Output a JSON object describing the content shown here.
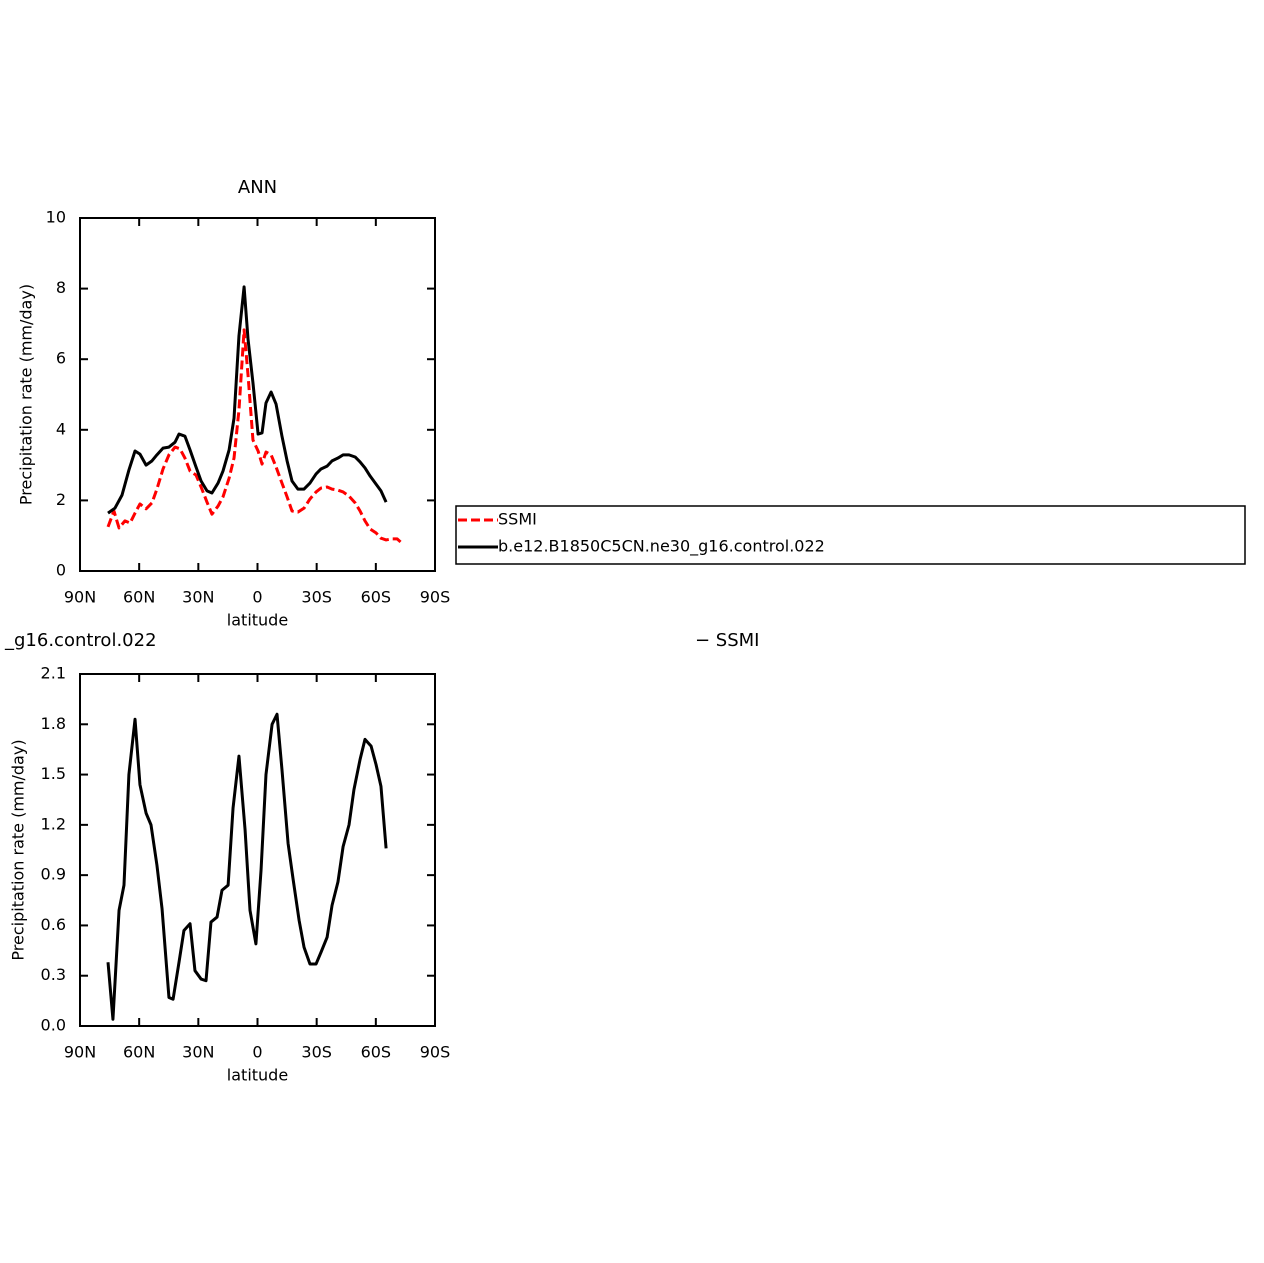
{
  "chart_data": [
    {
      "type": "line",
      "title": "ANN",
      "xlabel": "latitude",
      "ylabel": "Precipitation rate (mm/day)",
      "xlim": [
        90,
        -90
      ],
      "xticks": [
        {
          "value": 90,
          "label": "90N"
        },
        {
          "value": 60,
          "label": "60N"
        },
        {
          "value": 30,
          "label": "30N"
        },
        0,
        {
          "value": -30,
          "label": "30S"
        },
        {
          "value": -60,
          "label": "60S"
        },
        {
          "value": -90,
          "label": "90S"
        }
      ],
      "ylim": [
        0,
        10
      ],
      "yticks": [
        0,
        2,
        4,
        6,
        8,
        10
      ],
      "legend": "right",
      "series": [
        {
          "name": "SSMI",
          "color": "#ff0000",
          "dash": true,
          "x": [
            75.8,
            72.8,
            70.2,
            67.2,
            64.6,
            62.1,
            59.6,
            56.5,
            53.5,
            51.0,
            47.9,
            44.9,
            41.8,
            39.3,
            36.8,
            34.2,
            31.2,
            28.6,
            25.6,
            23.1,
            20.0,
            17.5,
            14.4,
            11.9,
            9.4,
            6.8,
            4.8,
            2.3,
            -0.3,
            -2.3,
            -4.3,
            -6.9,
            -9.4,
            -12.4,
            -15.0,
            -17.5,
            -20.5,
            -23.6,
            -26.6,
            -29.7,
            -32.2,
            -35.3,
            -37.8,
            -40.8,
            -43.4,
            -46.4,
            -49.5,
            -52.0,
            -54.5,
            -57.1,
            -60.1,
            -62.6,
            -65.2,
            -68.2,
            -70.8,
            -73.8
          ],
          "values": [
            1.25,
            1.7,
            1.22,
            1.42,
            1.36,
            1.64,
            1.9,
            1.76,
            1.93,
            2.32,
            2.89,
            3.29,
            3.51,
            3.46,
            3.2,
            2.83,
            2.72,
            2.38,
            1.95,
            1.61,
            1.84,
            2.1,
            2.63,
            3.2,
            4.56,
            6.83,
            5.55,
            3.71,
            3.4,
            3.03,
            3.37,
            3.29,
            2.95,
            2.49,
            2.1,
            1.7,
            1.67,
            1.78,
            2.04,
            2.24,
            2.35,
            2.38,
            2.32,
            2.29,
            2.24,
            2.12,
            1.93,
            1.7,
            1.42,
            1.19,
            1.08,
            0.93,
            0.88,
            0.91,
            0.91,
            0.76
          ]
        },
        {
          "name": "b.e12.B1850C5CN.ne30_g16.control.022",
          "color": "#000000",
          "dash": false,
          "x": [
            75.8,
            72.3,
            68.7,
            65.2,
            62.1,
            59.6,
            56.5,
            53.5,
            51.0,
            47.9,
            44.9,
            41.8,
            39.8,
            36.8,
            34.2,
            31.2,
            28.6,
            25.6,
            23.1,
            20.0,
            17.5,
            14.4,
            11.9,
            9.4,
            6.8,
            4.8,
            2.3,
            -0.3,
            -2.3,
            -4.3,
            -6.9,
            -9.4,
            -12.4,
            -15.0,
            -17.5,
            -20.5,
            -23.6,
            -26.6,
            -29.7,
            -32.2,
            -35.3,
            -37.8,
            -40.8,
            -43.4,
            -46.4,
            -49.5,
            -52.0,
            -54.5,
            -57.1,
            -60.1,
            -62.6,
            -65.2
          ],
          "values": [
            1.64,
            1.78,
            2.15,
            2.86,
            3.4,
            3.31,
            3.0,
            3.12,
            3.29,
            3.48,
            3.51,
            3.65,
            3.88,
            3.82,
            3.43,
            2.95,
            2.55,
            2.27,
            2.21,
            2.49,
            2.83,
            3.43,
            4.33,
            6.66,
            8.05,
            6.57,
            5.33,
            3.88,
            3.91,
            4.76,
            5.07,
            4.73,
            3.82,
            3.12,
            2.55,
            2.32,
            2.32,
            2.49,
            2.75,
            2.89,
            2.97,
            3.12,
            3.2,
            3.29,
            3.29,
            3.23,
            3.09,
            2.92,
            2.69,
            2.46,
            2.27,
            1.95
          ]
        }
      ]
    },
    {
      "type": "line",
      "left_title": "_g16.control.022",
      "right_title": "−  SSMI",
      "xlabel": "latitude",
      "ylabel": "Precipitation rate (mm/day)",
      "xlim": [
        90,
        -90
      ],
      "xticks": [
        {
          "value": 90,
          "label": "90N"
        },
        {
          "value": 60,
          "label": "60N"
        },
        {
          "value": 30,
          "label": "30N"
        },
        0,
        {
          "value": -30,
          "label": "30S"
        },
        {
          "value": -60,
          "label": "60S"
        },
        {
          "value": -90,
          "label": "90S"
        }
      ],
      "ylim": [
        0,
        2.1
      ],
      "yticks": [
        {
          "value": 0,
          "label": "0.0"
        },
        0.3,
        0.6,
        0.9,
        1.2,
        1.5,
        1.8,
        2.1
      ],
      "series": [
        {
          "color": "#000000",
          "dash": false,
          "x": [
            75.8,
            73.3,
            70.2,
            67.7,
            65.2,
            62.1,
            59.6,
            56.5,
            54.0,
            51.0,
            48.4,
            44.9,
            42.8,
            39.8,
            37.3,
            34.2,
            31.7,
            28.6,
            26.1,
            23.6,
            20.5,
            18.0,
            14.9,
            12.4,
            9.4,
            6.3,
            3.8,
            0.8,
            -1.8,
            -4.3,
            -7.4,
            -9.9,
            -12.4,
            -15.5,
            -18.0,
            -21.1,
            -23.6,
            -26.6,
            -29.7,
            -32.2,
            -35.3,
            -37.8,
            -40.8,
            -43.4,
            -46.4,
            -48.9,
            -52.0,
            -54.5,
            -57.6,
            -60.1,
            -62.6,
            -65.2
          ],
          "values": [
            0.38,
            0.04,
            0.69,
            0.84,
            1.5,
            1.83,
            1.44,
            1.27,
            1.2,
            0.96,
            0.7,
            0.17,
            0.16,
            0.38,
            0.57,
            0.61,
            0.33,
            0.28,
            0.27,
            0.62,
            0.65,
            0.81,
            0.84,
            1.3,
            1.61,
            1.17,
            0.69,
            0.49,
            0.93,
            1.5,
            1.8,
            1.86,
            1.53,
            1.09,
            0.88,
            0.63,
            0.47,
            0.37,
            0.37,
            0.44,
            0.53,
            0.72,
            0.86,
            1.07,
            1.2,
            1.41,
            1.59,
            1.71,
            1.67,
            1.56,
            1.43,
            1.06
          ]
        }
      ]
    }
  ]
}
